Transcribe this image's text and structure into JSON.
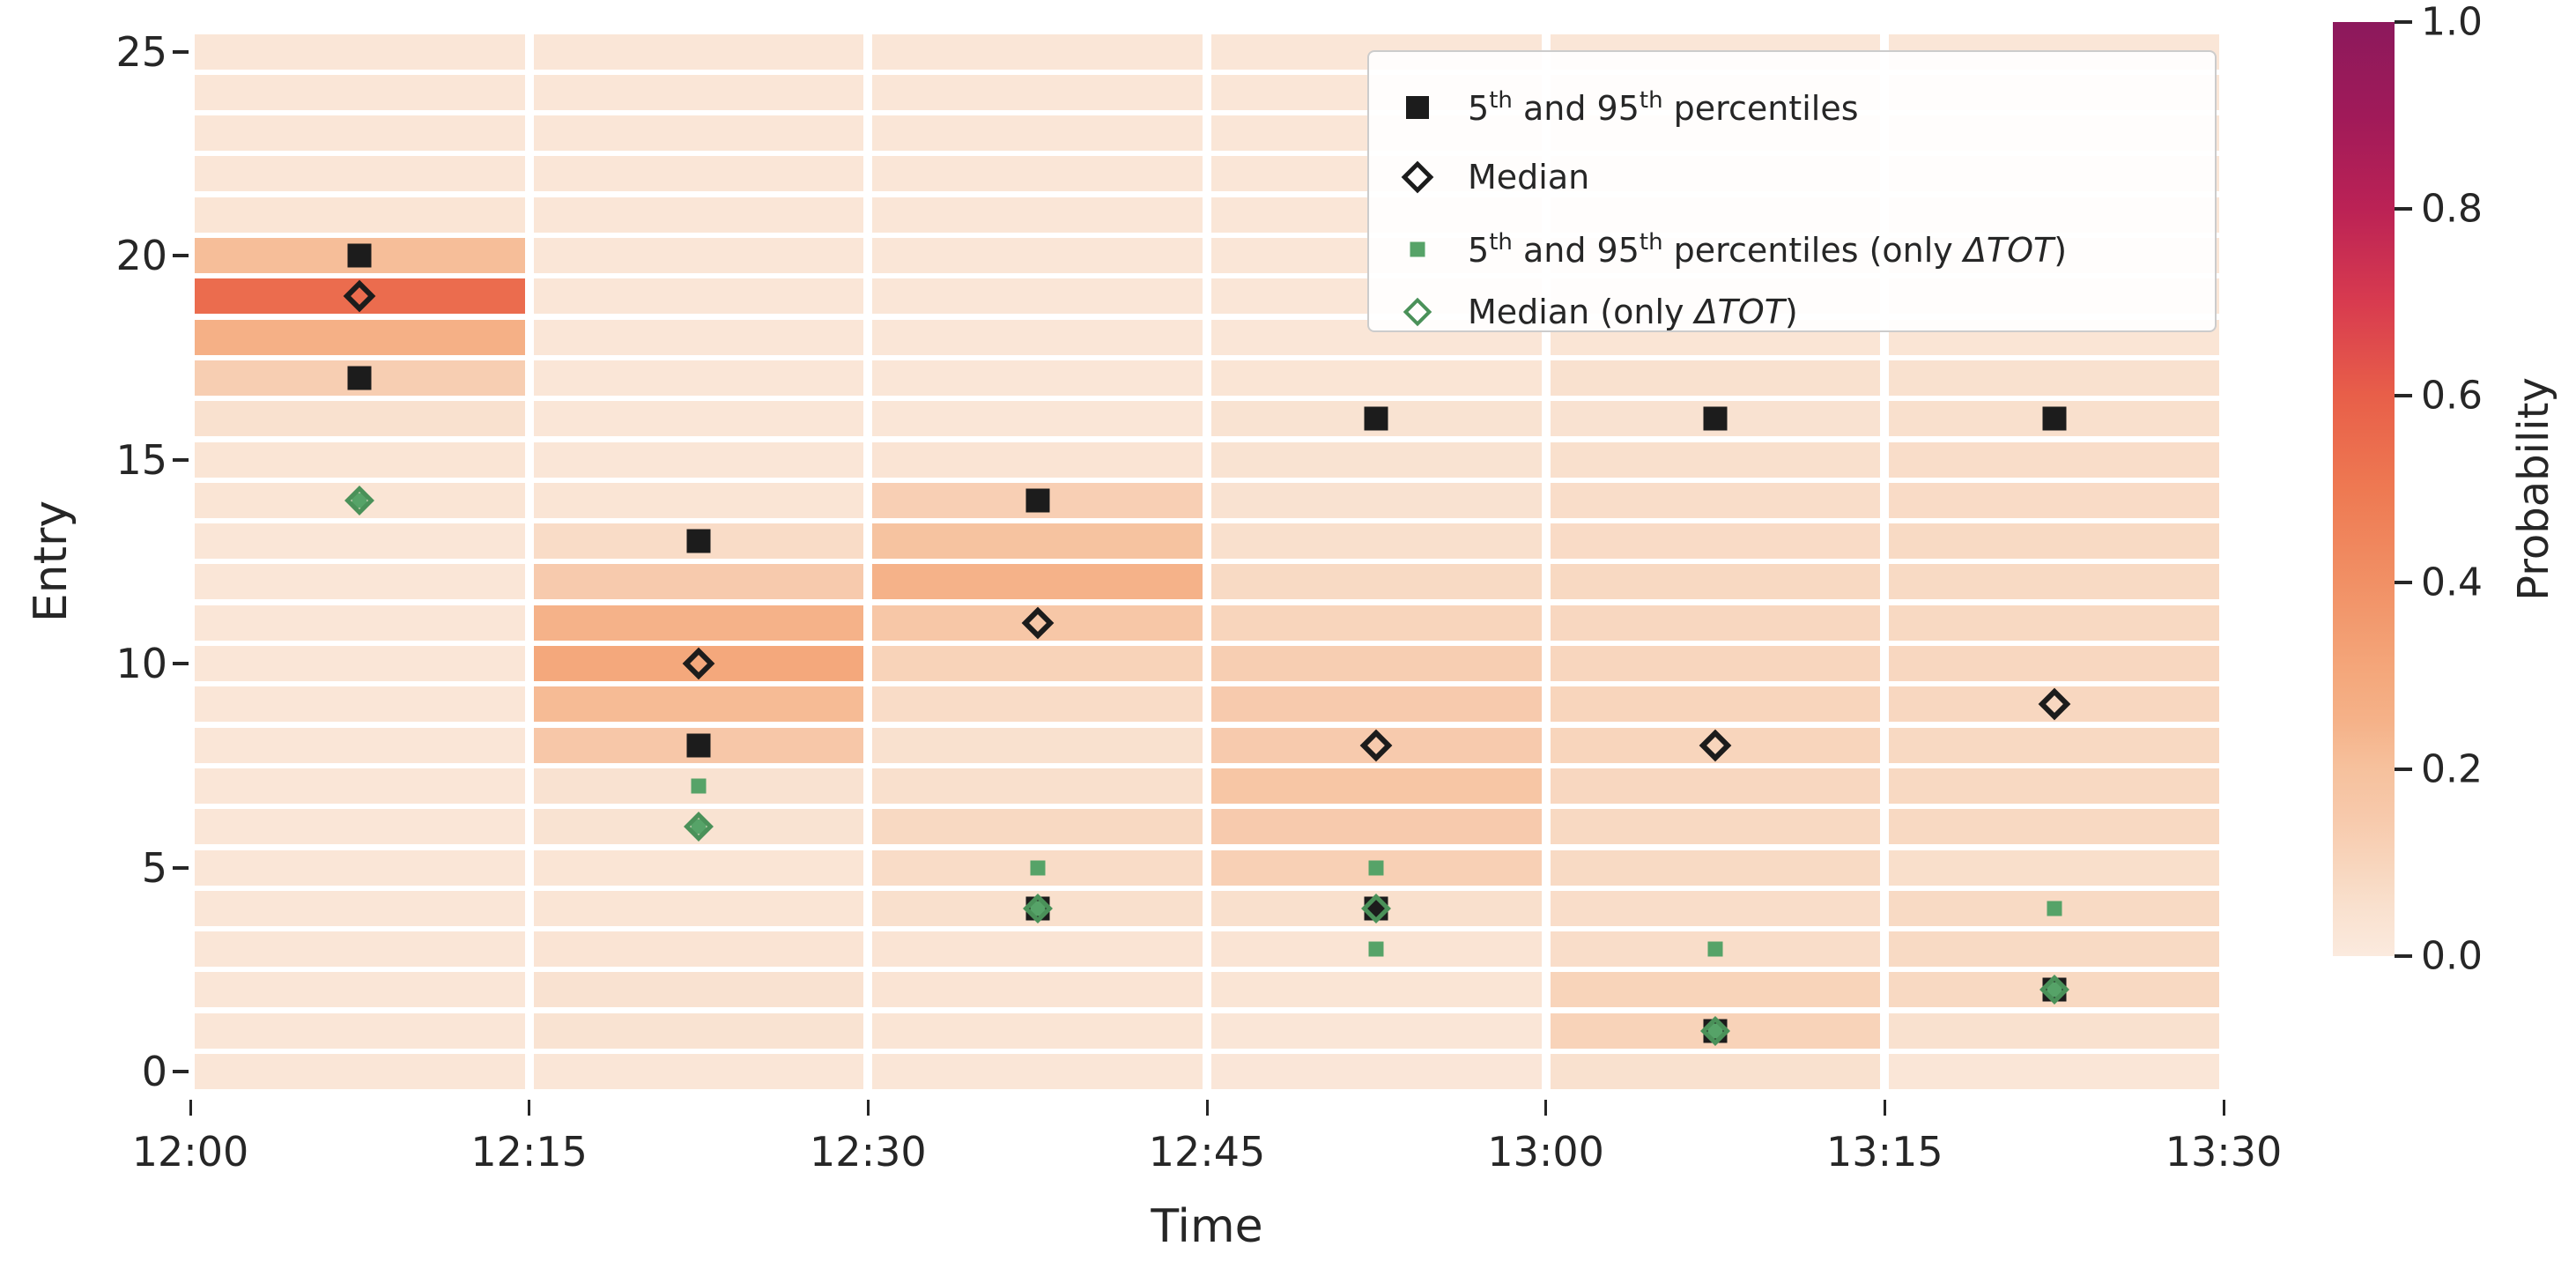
{
  "figure": {
    "background": "#ffffff"
  },
  "chart_data": {
    "type": "heatmap",
    "xlabel": "Time",
    "ylabel": "Entry",
    "colorbar_label": "Probability",
    "x_tick_labels": [
      "12:00",
      "12:15",
      "12:30",
      "12:45",
      "13:00",
      "13:15",
      "13:30"
    ],
    "x_tick_minutes": [
      0,
      15,
      30,
      45,
      60,
      75,
      90
    ],
    "y_tick_values": [
      0,
      5,
      10,
      15,
      20,
      25
    ],
    "y_range": [
      0,
      25
    ],
    "grid": "white-gaps-between-cells",
    "legend_position": "upper-right-inside",
    "colorbar_tick_labels": [
      "0.0",
      "0.2",
      "0.4",
      "0.6",
      "0.8",
      "1.0"
    ],
    "colorbar_tick_values": [
      0.0,
      0.2,
      0.4,
      0.6,
      0.8,
      1.0
    ],
    "prob_range": [
      0.0,
      1.0
    ],
    "colormap_stops": [
      [
        0.0,
        "#fbeade"
      ],
      [
        0.05,
        "#f9e1cf"
      ],
      [
        0.1,
        "#f8d5bc"
      ],
      [
        0.15,
        "#f7c9ab"
      ],
      [
        0.2,
        "#f6c19d"
      ],
      [
        0.25,
        "#f5b289"
      ],
      [
        0.3,
        "#f4a87c"
      ],
      [
        0.4,
        "#f19065"
      ],
      [
        0.5,
        "#ee7952"
      ],
      [
        0.6,
        "#e85f49"
      ],
      [
        0.7,
        "#d83b4f"
      ],
      [
        0.8,
        "#bb2255"
      ],
      [
        0.9,
        "#a01a59"
      ],
      [
        1.0,
        "#8c195c"
      ]
    ],
    "time_bins": [
      "12:00-12:15",
      "12:15-12:30",
      "12:30-12:45",
      "12:45-13:00",
      "13:00-13:15",
      "13:15-13:30"
    ],
    "entry_values": [
      0,
      1,
      2,
      3,
      4,
      5,
      6,
      7,
      8,
      9,
      10,
      11,
      12,
      13,
      14,
      15,
      16,
      17,
      18,
      19,
      20,
      21,
      22,
      23,
      24,
      25
    ],
    "probabilities_per_bin": [
      [
        0.025,
        0.025,
        0.025,
        0.025,
        0.025,
        0.025,
        0.025,
        0.025,
        0.025,
        0.025,
        0.025,
        0.025,
        0.025,
        0.025,
        0.03,
        0.03,
        0.05,
        0.13,
        0.26,
        0.55,
        0.21,
        0.03,
        0.025,
        0.025,
        0.025,
        0.025
      ],
      [
        0.025,
        0.04,
        0.045,
        0.035,
        0.03,
        0.03,
        0.04,
        0.045,
        0.16,
        0.22,
        0.3,
        0.25,
        0.145,
        0.07,
        0.03,
        0.025,
        0.025,
        0.025,
        0.025,
        0.025,
        0.025,
        0.025,
        0.025,
        0.025,
        0.025,
        0.025
      ],
      [
        0.025,
        0.03,
        0.035,
        0.035,
        0.055,
        0.07,
        0.085,
        0.055,
        0.05,
        0.07,
        0.11,
        0.165,
        0.25,
        0.19,
        0.125,
        0.035,
        0.025,
        0.025,
        0.025,
        0.025,
        0.025,
        0.025,
        0.025,
        0.025,
        0.025,
        0.025
      ],
      [
        0.02,
        0.025,
        0.03,
        0.035,
        0.055,
        0.12,
        0.145,
        0.17,
        0.145,
        0.145,
        0.13,
        0.1,
        0.08,
        0.055,
        0.045,
        0.04,
        0.04,
        0.03,
        0.025,
        0.025,
        0.025,
        0.025,
        0.025,
        0.025,
        0.025,
        0.025
      ],
      [
        0.05,
        0.11,
        0.105,
        0.065,
        0.065,
        0.08,
        0.085,
        0.09,
        0.1,
        0.1,
        0.095,
        0.09,
        0.085,
        0.075,
        0.065,
        0.055,
        0.045,
        0.05,
        0.03,
        0.025,
        0.025,
        0.025,
        0.025,
        0.025,
        0.025,
        0.025
      ],
      [
        0.025,
        0.05,
        0.085,
        0.08,
        0.08,
        0.06,
        0.085,
        0.085,
        0.085,
        0.09,
        0.09,
        0.085,
        0.08,
        0.08,
        0.075,
        0.065,
        0.055,
        0.05,
        0.03,
        0.025,
        0.025,
        0.025,
        0.025,
        0.025,
        0.025,
        0.025
      ]
    ],
    "series": [
      {
        "name": "5th and 95th percentiles",
        "marker": "black-filled-square",
        "entries_per_bin": [
          [
            20,
            17
          ],
          [
            13,
            8
          ],
          [
            14,
            4
          ],
          [
            16,
            4
          ],
          [
            16,
            1
          ],
          [
            16,
            2
          ]
        ]
      },
      {
        "name": "Median",
        "marker": "black-open-diamond",
        "entries_per_bin": [
          [
            19
          ],
          [
            10
          ],
          [
            11
          ],
          [
            8
          ],
          [
            8
          ],
          [
            9
          ]
        ]
      },
      {
        "name": "5th and 95th percentiles (only ΔTOT)",
        "marker": "green-filled-square",
        "entries_per_bin": [
          [
            14,
            14
          ],
          [
            7,
            6
          ],
          [
            5,
            4
          ],
          [
            5,
            3
          ],
          [
            3,
            1
          ],
          [
            4,
            2
          ]
        ]
      },
      {
        "name": "Median (only ΔTOT)",
        "marker": "green-open-diamond",
        "entries_per_bin": [
          [
            14
          ],
          [
            6
          ],
          [
            4
          ],
          [
            4
          ],
          [
            1
          ],
          [
            2
          ]
        ]
      }
    ],
    "colors": {
      "marker_black": "#1c1c1c",
      "marker_green": "#56a368",
      "marker_green_edge": "#4a9159",
      "background_cell": "#fbeade",
      "strongest_cell": "#f0714a"
    }
  },
  "legend": {
    "items": [
      {
        "marker": "black-square",
        "segments": [
          {
            "t": "5"
          },
          {
            "sup": "th"
          },
          {
            "t": " and 95"
          },
          {
            "sup": "th"
          },
          {
            "t": " percentiles"
          }
        ]
      },
      {
        "marker": "black-diamond",
        "segments": [
          {
            "t": "Median"
          }
        ]
      },
      {
        "marker": "green-square",
        "segments": [
          {
            "t": "5"
          },
          {
            "sup": "th"
          },
          {
            "t": " and 95"
          },
          {
            "sup": "th"
          },
          {
            "t": " percentiles (only "
          },
          {
            "i": "ΔTOT"
          },
          {
            "t": ")"
          }
        ]
      },
      {
        "marker": "green-diamond",
        "segments": [
          {
            "t": "Median (only "
          },
          {
            "i": "ΔTOT"
          },
          {
            "t": ")"
          }
        ]
      }
    ]
  }
}
